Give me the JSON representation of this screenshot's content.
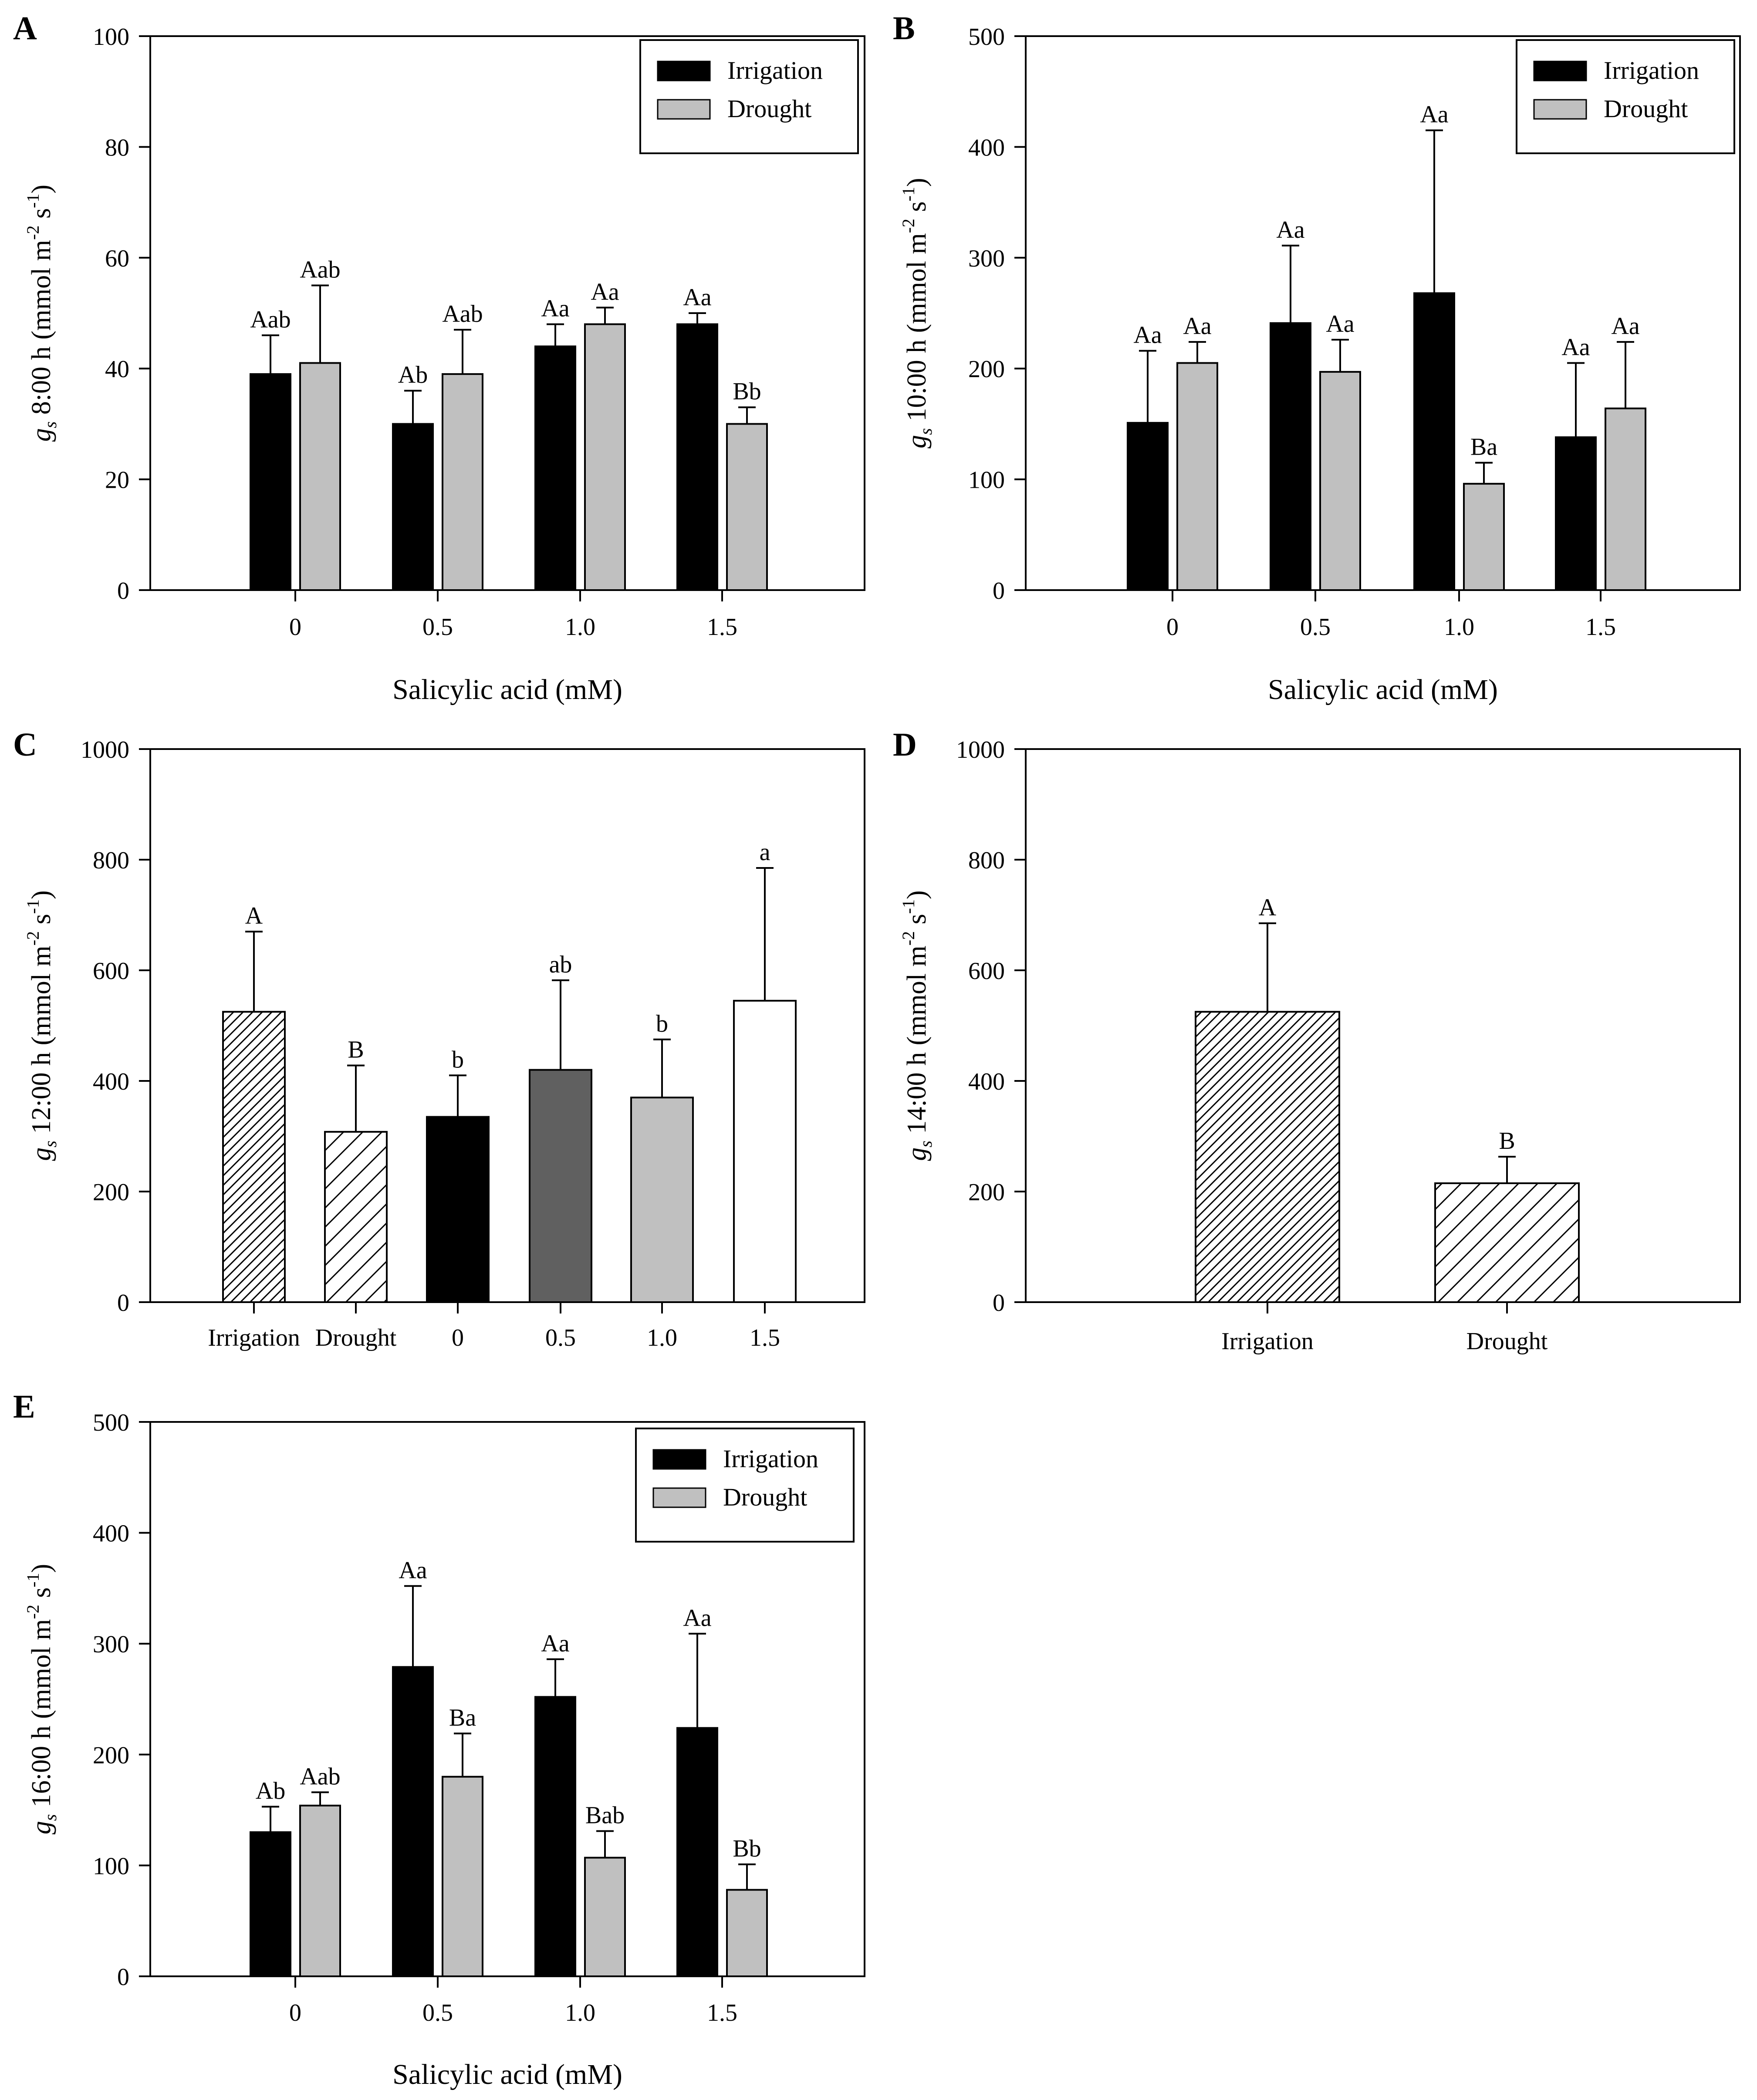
{
  "figure": {
    "panel_labels": [
      "A",
      "B",
      "C",
      "D",
      "E"
    ]
  },
  "colors": {
    "irrigation": "#000000",
    "drought": "#c0c0c0",
    "sa_0": "#000000",
    "sa_05": "#606060",
    "sa_10": "#c0c0c0",
    "sa_15": "#ffffff"
  },
  "chart_data": [
    {
      "panel": "A",
      "type": "bar",
      "title": "",
      "xlabel": "Salicylic acid (mM)",
      "ylabel": {
        "g": "g",
        "sub": "s",
        "time": " 8:00 h (mmol m",
        "exp1": "-2",
        "mid": " s",
        "exp2": "-1",
        "end": ")"
      },
      "ylim": [
        0,
        100
      ],
      "yticks": [
        0,
        20,
        40,
        60,
        80,
        100
      ],
      "categories": [
        "0",
        "0.5",
        "1.0",
        "1.5"
      ],
      "legend": {
        "position": "top-right",
        "entries": [
          "Irrigation",
          "Drought"
        ]
      },
      "series": [
        {
          "name": "Irrigation",
          "color": "#000000",
          "values": [
            39,
            30,
            44,
            48
          ],
          "errors": [
            7,
            6,
            4,
            2
          ],
          "labels": [
            "Aab",
            "Ab",
            "Aa",
            "Aa"
          ]
        },
        {
          "name": "Drought",
          "color": "#c0c0c0",
          "values": [
            41,
            39,
            48,
            30
          ],
          "errors": [
            14,
            8,
            3,
            3
          ],
          "labels": [
            "Aab",
            "Aab",
            "Aa",
            "Bb"
          ]
        }
      ]
    },
    {
      "panel": "B",
      "type": "bar",
      "title": "",
      "xlabel": "Salicylic acid (mM)",
      "ylabel": {
        "g": "g",
        "sub": "s",
        "time": " 10:00 h (mmol m",
        "exp1": "-2",
        "mid": " s",
        "exp2": "-1",
        "end": ")"
      },
      "ylim": [
        0,
        500
      ],
      "yticks": [
        0,
        100,
        200,
        300,
        400,
        500
      ],
      "categories": [
        "0",
        "0.5",
        "1.0",
        "1.5"
      ],
      "legend": {
        "position": "top-right",
        "entries": [
          "Irrigation",
          "Drought"
        ]
      },
      "series": [
        {
          "name": "Irrigation",
          "color": "#000000",
          "values": [
            151,
            241,
            268,
            138
          ],
          "errors": [
            65,
            70,
            147,
            67
          ],
          "labels": [
            "Aa",
            "Aa",
            "Aa",
            "Aa"
          ]
        },
        {
          "name": "Drought",
          "color": "#c0c0c0",
          "values": [
            205,
            197,
            96,
            164
          ],
          "errors": [
            19,
            29,
            19,
            60
          ],
          "labels": [
            "Aa",
            "Aa",
            "Ba",
            "Aa"
          ]
        }
      ]
    },
    {
      "panel": "C",
      "type": "bar",
      "title": "",
      "xlabel": "",
      "ylabel": {
        "g": "g",
        "sub": "s",
        "time": " 12:00 h (mmol m",
        "exp1": "-2",
        "mid": " s",
        "exp2": "-1",
        "end": ")"
      },
      "ylim": [
        0,
        1000
      ],
      "yticks": [
        0,
        200,
        400,
        600,
        800,
        1000
      ],
      "categories": [
        "Irrigation",
        "Drought",
        "0",
        "0.5",
        "1.0",
        "1.5"
      ],
      "values": [
        525,
        308,
        335,
        420,
        370,
        545
      ],
      "errors": [
        145,
        120,
        75,
        162,
        105,
        240
      ],
      "labels": [
        "A",
        "B",
        "b",
        "ab",
        "b",
        "a"
      ],
      "fills": [
        "hatch-dense",
        "hatch-sparse",
        "#000000",
        "#606060",
        "#c0c0c0",
        "#ffffff"
      ]
    },
    {
      "panel": "D",
      "type": "bar",
      "title": "",
      "xlabel": "",
      "ylabel": {
        "g": "g",
        "sub": "s",
        "time": " 14:00 h (mmol m",
        "exp1": "-2",
        "mid": " s",
        "exp2": "-1",
        "end": ")"
      },
      "ylim": [
        0,
        1000
      ],
      "yticks": [
        0,
        200,
        400,
        600,
        800,
        1000
      ],
      "categories": [
        "Irrigation",
        "Drought"
      ],
      "values": [
        525,
        215
      ],
      "errors": [
        160,
        48
      ],
      "labels": [
        "A",
        "B"
      ],
      "fills": [
        "hatch-dense",
        "hatch-sparse"
      ]
    },
    {
      "panel": "E",
      "type": "bar",
      "title": "",
      "xlabel": "Salicylic acid (mM)",
      "ylabel": {
        "g": "g",
        "sub": "s",
        "time": " 16:00 h (mmol m",
        "exp1": "-2",
        "mid": " s",
        "exp2": "-1",
        "end": ")"
      },
      "ylim": [
        0,
        500
      ],
      "yticks": [
        0,
        100,
        200,
        300,
        400,
        500
      ],
      "categories": [
        "0",
        "0.5",
        "1.0",
        "1.5"
      ],
      "legend": {
        "position": "top-right",
        "entries": [
          "Irrigation",
          "Drought"
        ]
      },
      "series": [
        {
          "name": "Irrigation",
          "color": "#000000",
          "values": [
            130,
            279,
            252,
            224
          ],
          "errors": [
            23,
            73,
            34,
            85
          ],
          "labels": [
            "Ab",
            "Aa",
            "Aa",
            "Aa"
          ]
        },
        {
          "name": "Drought",
          "color": "#c0c0c0",
          "values": [
            154,
            180,
            107,
            78
          ],
          "errors": [
            12,
            39,
            24,
            23
          ],
          "labels": [
            "Aab",
            "Ba",
            "Bab",
            "Bb"
          ]
        }
      ]
    }
  ]
}
